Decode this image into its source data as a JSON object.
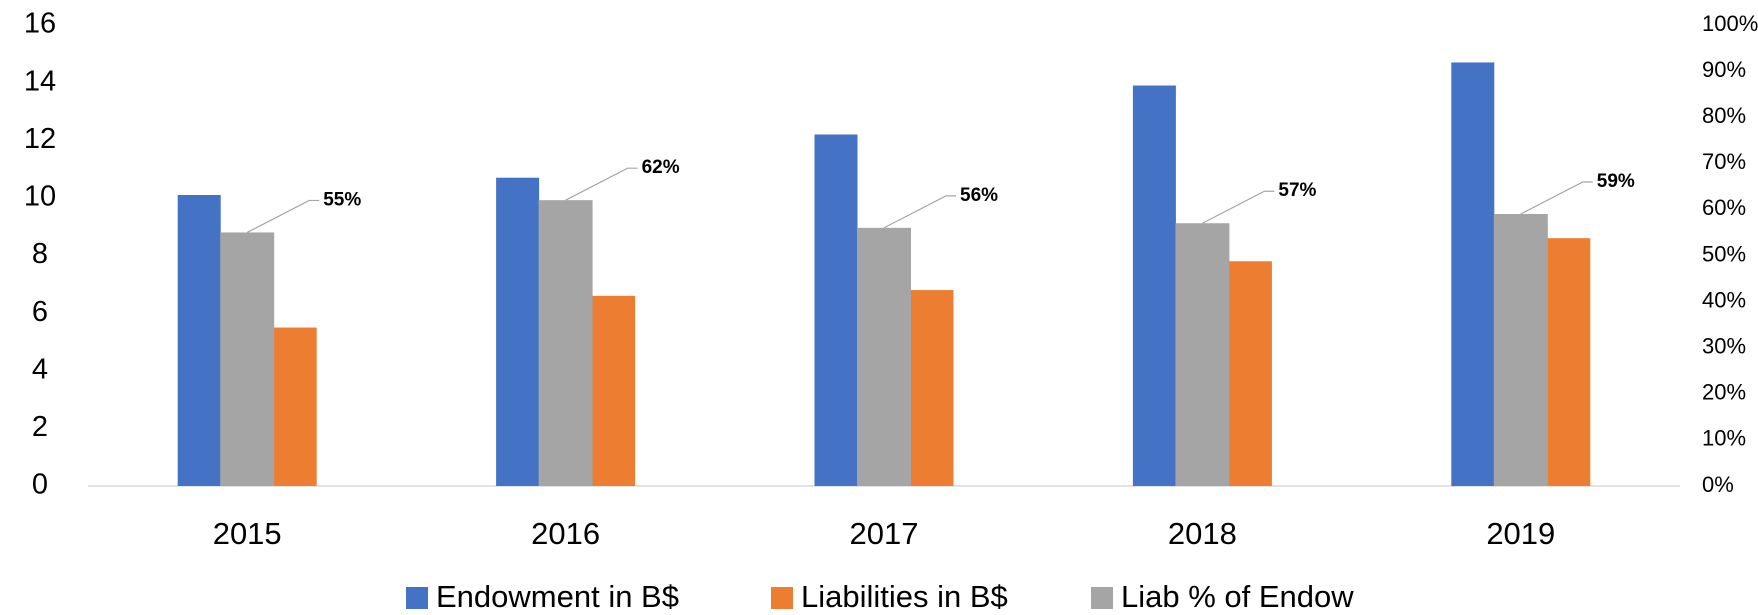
{
  "chart_data": {
    "type": "bar",
    "categories": [
      "2015",
      "2016",
      "2017",
      "2018",
      "2019"
    ],
    "series": [
      {
        "name": "Endowment in B$",
        "color": "#4472c4",
        "values": [
          10.1,
          10.7,
          12.2,
          13.9,
          14.7
        ]
      },
      {
        "name": "Liabilities in B$",
        "color": "#ed7d31",
        "values": [
          5.5,
          6.6,
          6.8,
          7.8,
          8.6
        ]
      },
      {
        "name": "Liab % of Endow",
        "color": "#a5a5a5",
        "axis": "y2",
        "values": [
          55,
          62,
          56,
          57,
          59
        ],
        "value_labels": [
          "55%",
          "62%",
          "56%",
          "57%",
          "59%"
        ]
      }
    ],
    "ylim": [
      0,
      16
    ],
    "yticks": [
      0,
      2,
      4,
      6,
      8,
      10,
      12,
      14,
      16
    ],
    "y2lim": [
      0,
      100
    ],
    "y2ticks": [
      {
        "value": 0,
        "label": "0%"
      },
      {
        "value": 10,
        "label": "10%"
      },
      {
        "value": 20,
        "label": "20%"
      },
      {
        "value": 30,
        "label": "30%"
      },
      {
        "value": 40,
        "label": "40%"
      },
      {
        "value": 50,
        "label": "50%"
      },
      {
        "value": 60,
        "label": "60%"
      },
      {
        "value": 70,
        "label": "70%"
      },
      {
        "value": 80,
        "label": "80%"
      },
      {
        "value": 90,
        "label": "90%"
      },
      {
        "value": 100,
        "label": "100%"
      }
    ],
    "grid": false,
    "legend": "bottom"
  }
}
